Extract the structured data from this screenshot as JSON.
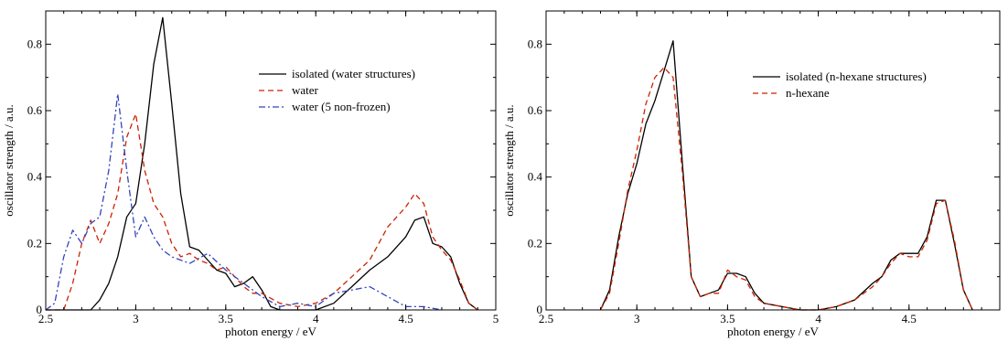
{
  "chart_data": [
    {
      "type": "line",
      "xlabel": "photon energy / eV",
      "ylabel": "oscillator strength / a.u.",
      "xlim": [
        2.5,
        5.0
      ],
      "ylim": [
        0,
        0.9
      ],
      "xticks": [
        2.5,
        3,
        3.5,
        4,
        4.5,
        5
      ],
      "xtick_labels": [
        "2.5",
        "3",
        "3.5",
        "4",
        "4.5",
        "5"
      ],
      "yticks": [
        0,
        0.2,
        0.4,
        0.6,
        0.8
      ],
      "ytick_labels": [
        "0",
        "0.2",
        "0.4",
        "0.6",
        "0.8"
      ],
      "legend": "top-right",
      "grid": false,
      "series": [
        {
          "name": "isolated (water structures)",
          "color": "#000000",
          "dash": "",
          "x": [
            2.5,
            2.75,
            2.8,
            2.85,
            2.9,
            2.95,
            3.0,
            3.05,
            3.1,
            3.15,
            3.2,
            3.25,
            3.3,
            3.35,
            3.4,
            3.45,
            3.5,
            3.55,
            3.6,
            3.65,
            3.7,
            3.75,
            3.8,
            3.9,
            4.0,
            4.1,
            4.2,
            4.3,
            4.4,
            4.5,
            4.55,
            4.6,
            4.65,
            4.7,
            4.75,
            4.8,
            4.85,
            4.9
          ],
          "y": [
            0,
            0,
            0.03,
            0.08,
            0.16,
            0.28,
            0.32,
            0.5,
            0.74,
            0.88,
            0.62,
            0.35,
            0.19,
            0.18,
            0.15,
            0.12,
            0.11,
            0.07,
            0.08,
            0.1,
            0.06,
            0.01,
            0,
            0,
            0,
            0.02,
            0.07,
            0.12,
            0.16,
            0.22,
            0.27,
            0.28,
            0.2,
            0.19,
            0.16,
            0.08,
            0.02,
            0
          ]
        },
        {
          "name": "water",
          "color": "#cc2200",
          "dash": "6,4",
          "x": [
            2.5,
            2.6,
            2.65,
            2.7,
            2.75,
            2.8,
            2.85,
            2.9,
            2.95,
            3.0,
            3.05,
            3.1,
            3.15,
            3.2,
            3.25,
            3.3,
            3.35,
            3.4,
            3.45,
            3.5,
            3.55,
            3.6,
            3.65,
            3.7,
            3.8,
            3.9,
            4.0,
            4.1,
            4.2,
            4.3,
            4.4,
            4.5,
            4.55,
            4.6,
            4.65,
            4.7,
            4.75,
            4.8,
            4.85,
            4.9
          ],
          "y": [
            0,
            0,
            0.08,
            0.2,
            0.27,
            0.2,
            0.26,
            0.35,
            0.52,
            0.59,
            0.42,
            0.32,
            0.28,
            0.2,
            0.16,
            0.17,
            0.15,
            0.14,
            0.12,
            0.13,
            0.1,
            0.07,
            0.05,
            0.05,
            0.02,
            0.01,
            0.02,
            0.05,
            0.1,
            0.15,
            0.25,
            0.31,
            0.35,
            0.32,
            0.22,
            0.18,
            0.15,
            0.09,
            0.02,
            0
          ]
        },
        {
          "name": "water (5 non-frozen)",
          "color": "#3344bb",
          "dash": "7,3,2,3",
          "x": [
            2.5,
            2.55,
            2.6,
            2.65,
            2.7,
            2.75,
            2.8,
            2.85,
            2.9,
            2.95,
            3.0,
            3.05,
            3.1,
            3.15,
            3.2,
            3.3,
            3.4,
            3.5,
            3.6,
            3.7,
            3.8,
            3.9,
            4.0,
            4.1,
            4.2,
            4.3,
            4.4,
            4.5,
            4.6,
            4.7
          ],
          "y": [
            0,
            0.02,
            0.16,
            0.24,
            0.2,
            0.26,
            0.28,
            0.42,
            0.65,
            0.42,
            0.22,
            0.28,
            0.22,
            0.18,
            0.16,
            0.14,
            0.17,
            0.12,
            0.08,
            0.04,
            0.01,
            0.02,
            0.01,
            0.05,
            0.06,
            0.07,
            0.04,
            0.01,
            0.01,
            0
          ]
        }
      ]
    },
    {
      "type": "line",
      "xlabel": "photon energy / eV",
      "ylabel": "oscillator strength / a.u.",
      "xlim": [
        2.5,
        5.0
      ],
      "ylim": [
        0,
        0.9
      ],
      "xticks": [
        2.5,
        3,
        3.5,
        4,
        4.5
      ],
      "xtick_labels": [
        "2.5",
        "3",
        "3.5",
        "4",
        "4.5"
      ],
      "yticks": [
        0,
        0.2,
        0.4,
        0.6,
        0.8
      ],
      "ytick_labels": [
        "0",
        "0.2",
        "0.4",
        "0.6",
        "0.8"
      ],
      "legend": "top-right",
      "grid": false,
      "series": [
        {
          "name": "isolated (n-hexane structures)",
          "color": "#000000",
          "dash": "",
          "x": [
            2.8,
            2.85,
            2.9,
            2.95,
            3.0,
            3.05,
            3.1,
            3.15,
            3.2,
            3.25,
            3.3,
            3.35,
            3.4,
            3.45,
            3.5,
            3.55,
            3.6,
            3.65,
            3.7,
            3.8,
            3.9,
            4.0,
            4.1,
            4.2,
            4.3,
            4.35,
            4.4,
            4.45,
            4.5,
            4.55,
            4.6,
            4.65,
            4.7,
            4.75,
            4.8,
            4.85
          ],
          "y": [
            0,
            0.06,
            0.22,
            0.35,
            0.44,
            0.56,
            0.63,
            0.72,
            0.81,
            0.45,
            0.1,
            0.04,
            0.05,
            0.06,
            0.11,
            0.11,
            0.1,
            0.05,
            0.02,
            0.01,
            0,
            0,
            0.01,
            0.03,
            0.08,
            0.1,
            0.15,
            0.17,
            0.17,
            0.17,
            0.22,
            0.33,
            0.33,
            0.2,
            0.06,
            0
          ]
        },
        {
          "name": "n-hexane",
          "color": "#cc2200",
          "dash": "6,4",
          "x": [
            2.8,
            2.85,
            2.9,
            2.95,
            3.0,
            3.05,
            3.1,
            3.15,
            3.2,
            3.25,
            3.3,
            3.35,
            3.4,
            3.45,
            3.5,
            3.55,
            3.6,
            3.65,
            3.7,
            3.8,
            3.9,
            4.0,
            4.1,
            4.2,
            4.3,
            4.35,
            4.4,
            4.45,
            4.5,
            4.55,
            4.6,
            4.65,
            4.7,
            4.75,
            4.8,
            4.85
          ],
          "y": [
            0,
            0.05,
            0.2,
            0.36,
            0.48,
            0.62,
            0.7,
            0.73,
            0.7,
            0.42,
            0.1,
            0.04,
            0.05,
            0.05,
            0.12,
            0.1,
            0.09,
            0.04,
            0.02,
            0.01,
            0,
            0,
            0.01,
            0.03,
            0.07,
            0.1,
            0.14,
            0.17,
            0.16,
            0.16,
            0.21,
            0.32,
            0.33,
            0.21,
            0.06,
            0
          ]
        }
      ]
    }
  ]
}
